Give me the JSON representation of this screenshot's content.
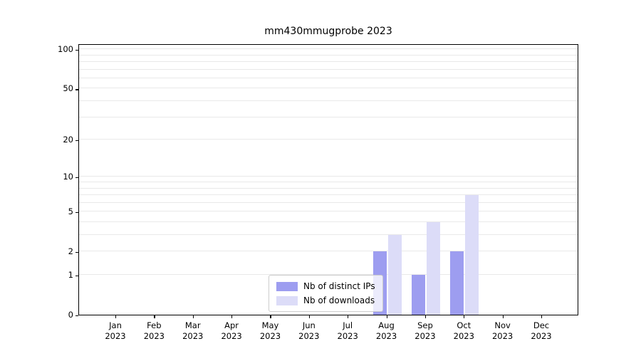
{
  "chart_data": {
    "type": "bar",
    "title": "mm430mmugprobe 2023",
    "categories": [
      "Jan",
      "Feb",
      "Mar",
      "Apr",
      "May",
      "Jun",
      "Jul",
      "Aug",
      "Sep",
      "Oct",
      "Nov",
      "Dec"
    ],
    "category_year": "2023",
    "series": [
      {
        "name": "Nb of distinct IPs",
        "color": "#9d9df0",
        "values": [
          0,
          0,
          0,
          0,
          0,
          0,
          0,
          2,
          1,
          2,
          0,
          0
        ]
      },
      {
        "name": "Nb of downloads",
        "color": "#dcdcf8",
        "values": [
          0,
          0,
          0,
          0,
          0,
          0,
          0,
          3,
          4,
          7,
          0,
          0
        ]
      }
    ],
    "yscale": "log1p",
    "ytick_values": [
      0,
      1,
      2,
      5,
      10,
      20,
      50,
      100
    ],
    "gridline_values": [
      1,
      2,
      3,
      4,
      5,
      6,
      7,
      8,
      9,
      10,
      20,
      30,
      40,
      50,
      60,
      70,
      80,
      90,
      100
    ],
    "ylim_top": 110,
    "grid": "on",
    "legend_position": "lower center",
    "colors": {
      "grid": "#e9e9e9",
      "axis": "#000000",
      "background": "#ffffff"
    }
  }
}
